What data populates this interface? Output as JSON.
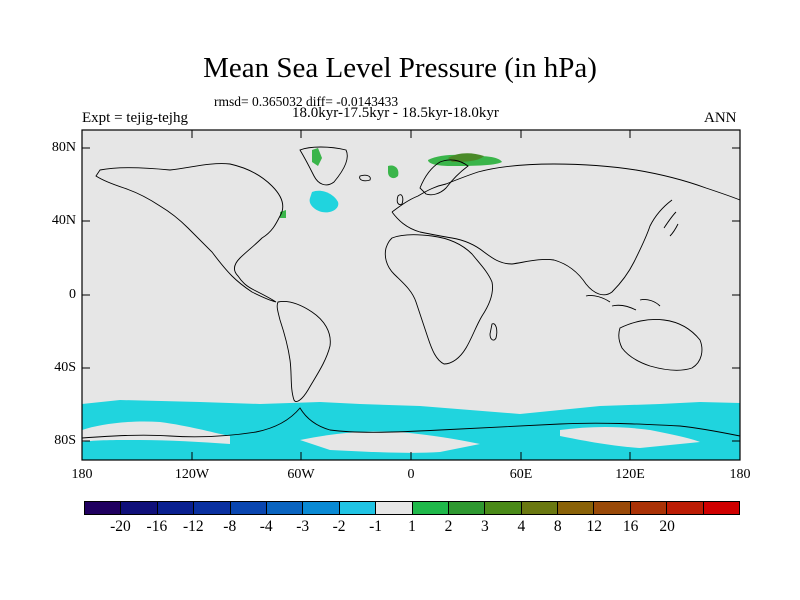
{
  "title": "Mean Sea Level Pressure (in hPa)",
  "stats_line": "rmsd= 0.365032 diff= -0.0143433",
  "period_line": "18.0kyr-17.5kyr - 18.5kyr-18.0kyr",
  "experiment_label": "Expt = tejig-tejhg",
  "season_label": "ANN",
  "map": {
    "background_color": "#e6e6e6",
    "coast_color": "#000000",
    "y_ticks": [
      "80N",
      "40N",
      "0",
      "40S",
      "80S"
    ],
    "x_ticks": [
      "180",
      "120W",
      "60W",
      "0",
      "60E",
      "120E",
      "180"
    ]
  },
  "colorbar": {
    "colors": [
      "#200060",
      "#10107a",
      "#0a2090",
      "#0a30a0",
      "#0a46b0",
      "#0a64c0",
      "#0a8ad4",
      "#20c4e4",
      "#e6e6e6",
      "#1fb84a",
      "#2e9830",
      "#4a8a18",
      "#6a7810",
      "#8a6208",
      "#9a4a08",
      "#aa3206",
      "#bc1c04",
      "#d00000"
    ],
    "labels": [
      "-20",
      "-16",
      "-12",
      "-8",
      "-4",
      "-3",
      "-2",
      "-1",
      "1",
      "2",
      "3",
      "4",
      "8",
      "12",
      "16",
      "20"
    ]
  }
}
